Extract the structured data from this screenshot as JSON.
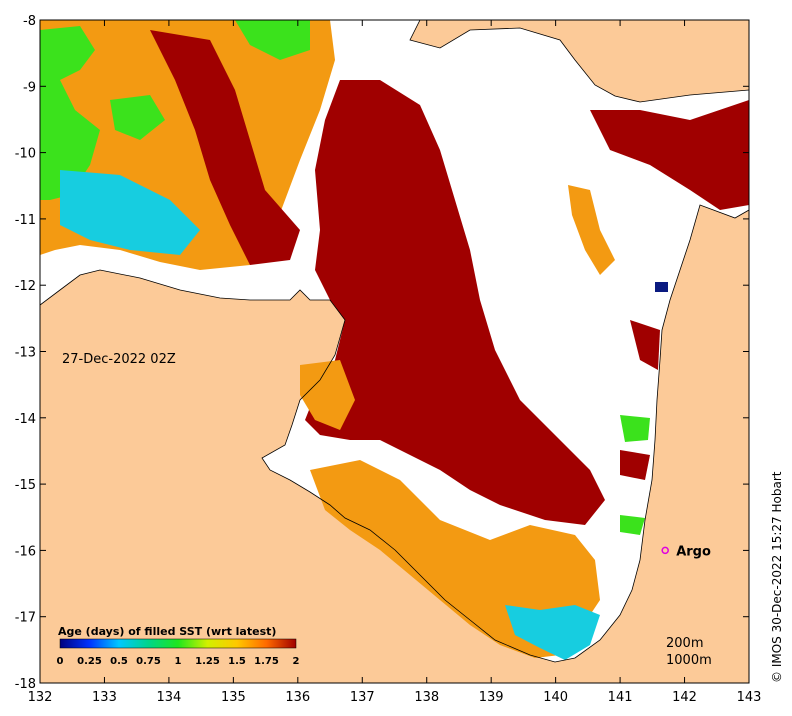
{
  "map": {
    "date_label": "27-Dec-2022 02Z",
    "credit": "© IMOS 30-Dec-2022 15:27 Hobart",
    "depth_labels": [
      "200m",
      "1000m"
    ],
    "argo_label": "Argo",
    "argo_position": {
      "lon": 141.7,
      "lat": -16.0
    },
    "lon_range": [
      132,
      143
    ],
    "lat_range": [
      -18,
      -8
    ],
    "x_ticks": [
      "132",
      "133",
      "134",
      "135",
      "136",
      "137",
      "138",
      "139",
      "140",
      "141",
      "142",
      "143"
    ],
    "y_ticks": [
      "-8",
      "-9",
      "-10",
      "-11",
      "-12",
      "-13",
      "-14",
      "-15",
      "-16",
      "-17",
      "-18"
    ],
    "colors": {
      "land": "#fcca98",
      "ocean_no_data": "#ffffff",
      "age_old": "#a00000",
      "age_mid": "#f39a12",
      "age_green": "#3be21c",
      "age_cyan": "#17cde0",
      "age_navy": "#0a1a80",
      "argo_marker": "#e000e0"
    }
  },
  "legend": {
    "title": "Age (days) of filled SST (wrt latest)",
    "ticks": [
      "0",
      "0.25",
      "0.5",
      "0.75",
      "1",
      "1.25",
      "1.5",
      "1.75",
      "2"
    ],
    "gradient": [
      "#00007f",
      "#0033ff",
      "#00c8ff",
      "#00d58a",
      "#1ee61e",
      "#d2f000",
      "#ffc800",
      "#ff6a00",
      "#a00000"
    ]
  }
}
